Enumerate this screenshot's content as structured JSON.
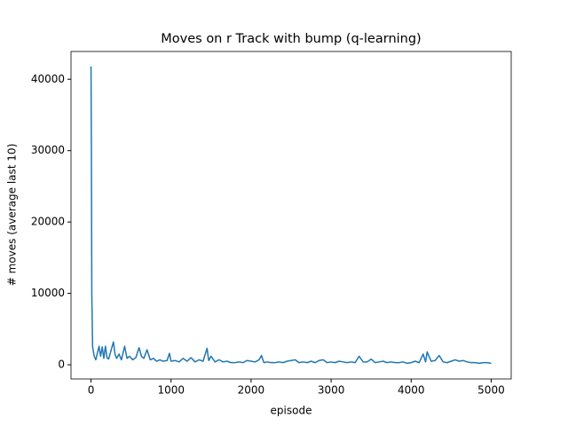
{
  "chart_data": {
    "type": "line",
    "title": "Moves on r Track with bump (q-learning)",
    "x_label": "episode",
    "y_label": "# moves (average last 10)",
    "x": [
      0,
      5,
      10,
      20,
      40,
      60,
      100,
      120,
      140,
      160,
      180,
      200,
      220,
      250,
      280,
      300,
      320,
      350,
      380,
      420,
      450,
      480,
      520,
      560,
      600,
      630,
      660,
      700,
      740,
      780,
      820,
      860,
      900,
      950,
      980,
      1000,
      1050,
      1100,
      1150,
      1200,
      1250,
      1300,
      1350,
      1400,
      1450,
      1470,
      1500,
      1550,
      1600,
      1650,
      1700,
      1750,
      1800,
      1850,
      1900,
      1950,
      2000,
      2050,
      2100,
      2130,
      2160,
      2200,
      2250,
      2300,
      2350,
      2400,
      2450,
      2500,
      2550,
      2600,
      2650,
      2700,
      2750,
      2800,
      2850,
      2900,
      2950,
      3000,
      3050,
      3100,
      3150,
      3200,
      3250,
      3300,
      3350,
      3400,
      3450,
      3500,
      3550,
      3600,
      3650,
      3700,
      3750,
      3800,
      3850,
      3900,
      3950,
      4000,
      4050,
      4100,
      4150,
      4180,
      4200,
      4250,
      4300,
      4350,
      4400,
      4450,
      4500,
      4550,
      4600,
      4650,
      4700,
      4750,
      4800,
      4850,
      4900,
      4950,
      5000
    ],
    "series": [
      {
        "name": "moves",
        "color": "#1f77b4",
        "values": [
          41800,
          30000,
          10000,
          2500,
          1200,
          700,
          2600,
          1200,
          2500,
          900,
          2600,
          1000,
          800,
          2000,
          3200,
          1500,
          900,
          1500,
          700,
          2600,
          900,
          1200,
          700,
          1000,
          2400,
          1200,
          900,
          2100,
          700,
          900,
          500,
          700,
          500,
          600,
          1600,
          500,
          600,
          400,
          900,
          500,
          1000,
          400,
          700,
          500,
          2300,
          600,
          1200,
          400,
          700,
          400,
          500,
          300,
          300,
          400,
          300,
          600,
          500,
          400,
          700,
          1300,
          300,
          400,
          300,
          300,
          400,
          300,
          500,
          600,
          700,
          300,
          400,
          300,
          500,
          300,
          600,
          700,
          300,
          400,
          300,
          500,
          400,
          300,
          400,
          300,
          1200,
          400,
          400,
          800,
          300,
          400,
          500,
          300,
          400,
          300,
          300,
          400,
          200,
          300,
          500,
          300,
          1500,
          400,
          1800,
          500,
          600,
          1300,
          400,
          300,
          500,
          700,
          500,
          600,
          400,
          300,
          300,
          200,
          300,
          300,
          200
        ]
      }
    ],
    "xlim": [
      -250,
      5250
    ],
    "ylim": [
      -1985,
      43885
    ],
    "xticks": [
      0,
      1000,
      2000,
      3000,
      4000,
      5000
    ],
    "yticks": [
      0,
      10000,
      20000,
      30000,
      40000
    ]
  }
}
